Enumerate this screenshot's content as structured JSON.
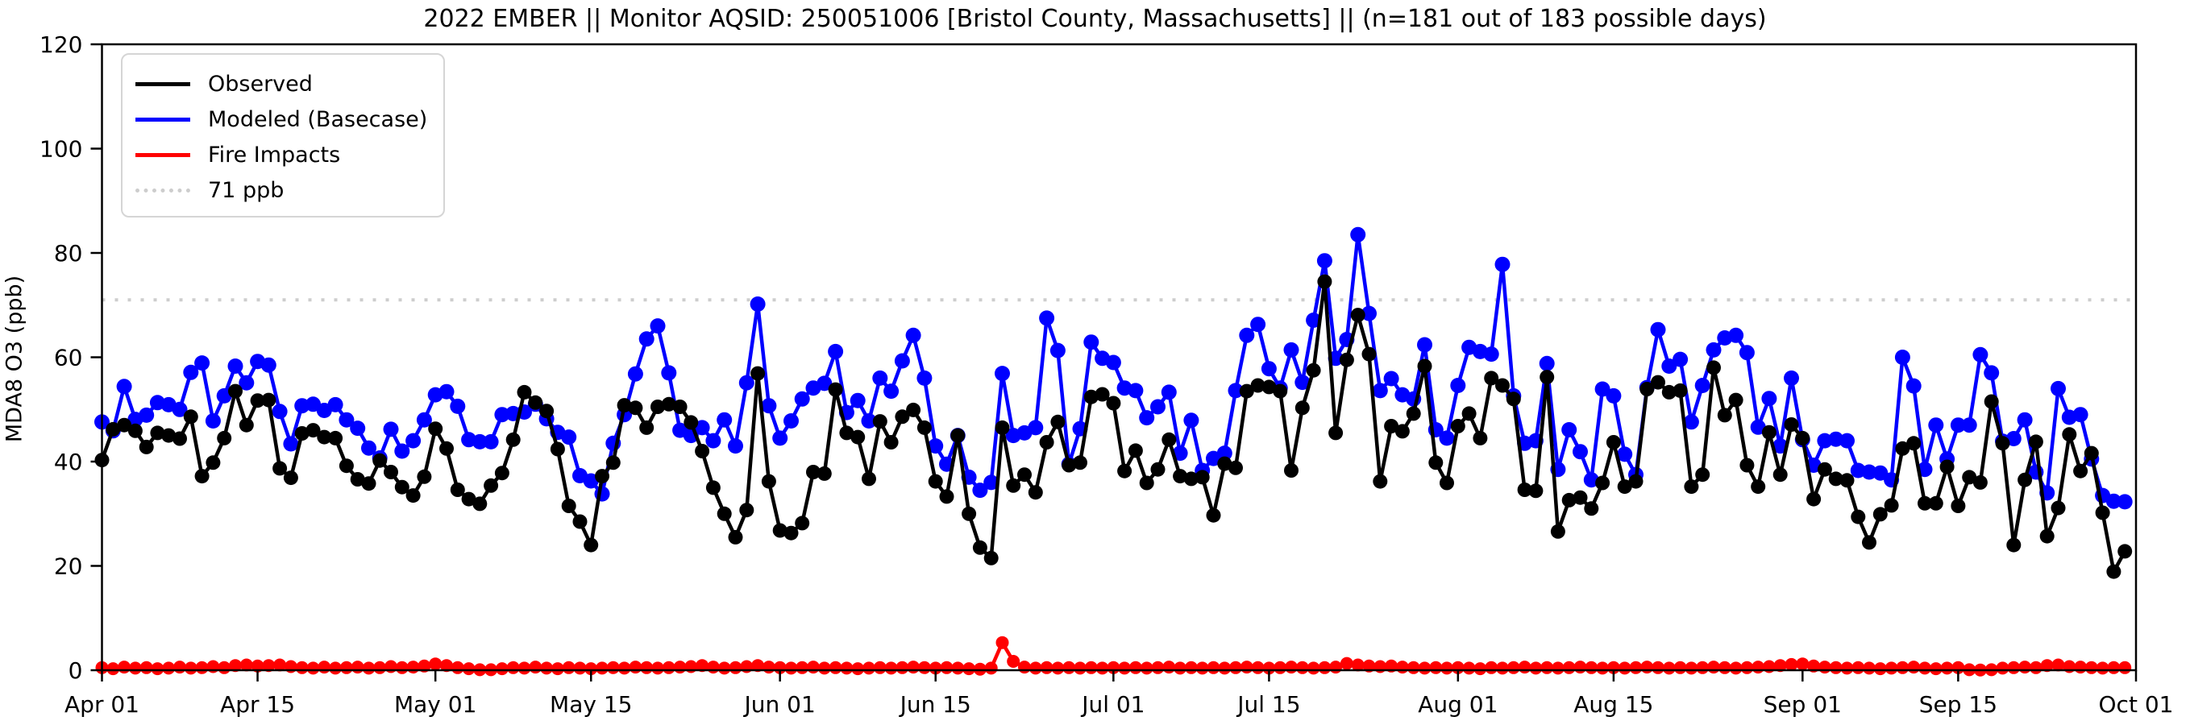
{
  "title": "2022 EMBER || Monitor AQSID: 250051006 [Bristol County, Massachusetts] || (n=181 out of 183 possible days)",
  "ylabel": "MDA8 O3 (ppb)",
  "legend": {
    "observed": "Observed",
    "modeled": "Modeled (Basecase)",
    "fire": "Fire Impacts",
    "threshold": "71 ppb"
  },
  "colors": {
    "observed": "#000000",
    "modeled": "#0000ff",
    "fire": "#ff0000",
    "threshold": "#cdcdcd",
    "axis": "#000000"
  },
  "chart_data": {
    "type": "line",
    "title": "2022 EMBER || Monitor AQSID: 250051006 [Bristol County, Massachusetts] || (n=181 out of 183 possible days)",
    "xlabel": "",
    "ylabel": "MDA8 O3 (ppb)",
    "ylim": [
      0,
      120
    ],
    "y_ticks": [
      0,
      20,
      40,
      60,
      80,
      100,
      120
    ],
    "x_ticks": [
      {
        "label": "Apr 01",
        "day": 0
      },
      {
        "label": "Apr 15",
        "day": 14
      },
      {
        "label": "May 01",
        "day": 30
      },
      {
        "label": "May 15",
        "day": 44
      },
      {
        "label": "Jun 01",
        "day": 61
      },
      {
        "label": "Jun 15",
        "day": 75
      },
      {
        "label": "Jul 01",
        "day": 91
      },
      {
        "label": "Jul 15",
        "day": 105
      },
      {
        "label": "Aug 01",
        "day": 122
      },
      {
        "label": "Aug 15",
        "day": 136
      },
      {
        "label": "Sep 01",
        "day": 153
      },
      {
        "label": "Sep 15",
        "day": 167
      },
      {
        "label": "Oct 01",
        "day": 183
      }
    ],
    "date_range": {
      "start": "Apr 01 2022",
      "end": "Sep 30 2022",
      "days": 183
    },
    "n_days_observed": 181,
    "n_days_possible": 183,
    "threshold_ppb": 71,
    "legend_position": "upper left",
    "grid": false,
    "series": [
      {
        "name": "Observed",
        "color": "#000000",
        "values": [
          40.3,
          46.2,
          47.0,
          45.9,
          42.8,
          45.5,
          45.0,
          44.4,
          48.6,
          37.2,
          39.8,
          44.5,
          53.5,
          47.0,
          51.7,
          51.8,
          38.7,
          36.9,
          45.4,
          46.0,
          44.7,
          44.5,
          39.2,
          36.6,
          35.8,
          40.2,
          38.0,
          35.1,
          33.5,
          37.1,
          46.3,
          42.5,
          34.6,
          32.8,
          31.9,
          35.4,
          37.8,
          44.2,
          53.3,
          51.3,
          49.7,
          42.4,
          31.5,
          28.5,
          24.0,
          37.2,
          39.8,
          50.8,
          50.3,
          46.5,
          50.5,
          51.0,
          50.5,
          47.5,
          42.0,
          35.0,
          30.0,
          25.5,
          30.7,
          56.9,
          36.2,
          26.8,
          26.3,
          28.2,
          38.0,
          37.7,
          53.8,
          45.5,
          44.7,
          36.7,
          47.7,
          43.7,
          48.6,
          49.9,
          46.5,
          36.2,
          33.3,
          45.0,
          30.0,
          23.5,
          21.5,
          46.5,
          35.4,
          37.5,
          34.1,
          43.7,
          47.6,
          39.3,
          39.8,
          52.4,
          52.9,
          51.2,
          38.2,
          42.1,
          35.9,
          38.5,
          44.2,
          37.2,
          36.7,
          37.0,
          29.7,
          39.6,
          38.8,
          53.5,
          54.6,
          54.3,
          53.5,
          38.3,
          50.3,
          57.5,
          74.5,
          45.5,
          59.5,
          68.1,
          60.6,
          36.2,
          46.8,
          45.8,
          49.2,
          58.3,
          39.8,
          35.9,
          46.8,
          49.2,
          44.5,
          56.0,
          54.6,
          52.0,
          34.6,
          34.4,
          56.2,
          26.6,
          32.6,
          33.1,
          31.0,
          35.9,
          43.7,
          35.2,
          36.2,
          53.9,
          55.2,
          53.3,
          53.6,
          35.2,
          37.5,
          58.0,
          48.9,
          51.8,
          39.3,
          35.2,
          45.6,
          37.5,
          47.1,
          44.5,
          32.8,
          38.5,
          36.7,
          36.4,
          29.4,
          24.5,
          29.9,
          31.6,
          42.5,
          43.5,
          32.0,
          32.0,
          39.0,
          31.5,
          37.0,
          36.0,
          51.5,
          43.5,
          24.0,
          36.5,
          43.8,
          25.7,
          31.1,
          45.2,
          38.2,
          41.6,
          30.2,
          18.9,
          22.8
        ]
      },
      {
        "name": "Modeled (Basecase)",
        "color": "#0000ff",
        "values": [
          47.6,
          45.9,
          54.4,
          48.1,
          48.9,
          51.3,
          50.9,
          50.0,
          57.1,
          58.9,
          47.8,
          52.6,
          58.3,
          55.1,
          59.2,
          58.5,
          49.6,
          43.4,
          50.7,
          51.0,
          49.8,
          50.9,
          48.0,
          46.4,
          42.6,
          40.7,
          46.2,
          42.0,
          44.0,
          48.0,
          52.8,
          53.4,
          50.6,
          44.2,
          43.8,
          43.8,
          49.0,
          49.2,
          49.5,
          51.0,
          48.2,
          45.6,
          44.7,
          37.3,
          36.3,
          33.8,
          43.5,
          49.0,
          56.8,
          63.5,
          66.0,
          57.0,
          46.0,
          45.0,
          46.5,
          44.0,
          48.0,
          43.0,
          55.1,
          70.2,
          50.7,
          44.5,
          47.8,
          52.0,
          54.1,
          55.0,
          61.1,
          49.4,
          51.7,
          47.8,
          56.0,
          53.5,
          59.3,
          64.2,
          56.0,
          43.0,
          39.5,
          45.0,
          37.0,
          34.5,
          36.0,
          56.9,
          45.0,
          45.5,
          46.5,
          67.5,
          61.3,
          39.5,
          46.3,
          62.9,
          59.8,
          59.0,
          54.1,
          53.6,
          48.4,
          50.5,
          53.3,
          41.6,
          47.9,
          38.3,
          40.6,
          41.6,
          53.6,
          64.2,
          66.3,
          57.8,
          54.1,
          61.4,
          55.2,
          67.1,
          78.5,
          59.8,
          63.4,
          83.5,
          68.4,
          53.6,
          55.9,
          52.8,
          52.0,
          62.4,
          46.1,
          44.5,
          54.6,
          61.9,
          61.1,
          60.6,
          77.8,
          52.6,
          43.5,
          44.0,
          58.8,
          38.5,
          46.1,
          41.9,
          36.5,
          53.9,
          52.6,
          41.4,
          37.5,
          54.2,
          65.3,
          58.3,
          59.6,
          47.6,
          54.6,
          61.4,
          63.7,
          64.2,
          60.9,
          46.6,
          52.1,
          43.0,
          56.0,
          44.2,
          39.3,
          44.0,
          44.3,
          44.0,
          38.3,
          38.0,
          37.8,
          36.5,
          60.0,
          54.5,
          38.5,
          47.0,
          40.5,
          47.0,
          47.0,
          60.5,
          57.0,
          43.9,
          44.4,
          48.0,
          38.0,
          34.0,
          54.0,
          48.5,
          49.0,
          40.5,
          33.5,
          32.4,
          32.3
        ]
      },
      {
        "name": "Fire Impacts",
        "color": "#ff0000",
        "values": [
          0.5,
          0.3,
          0.6,
          0.4,
          0.5,
          0.3,
          0.4,
          0.6,
          0.4,
          0.5,
          0.7,
          0.5,
          0.9,
          1.0,
          0.8,
          0.9,
          1.0,
          0.7,
          0.5,
          0.4,
          0.6,
          0.4,
          0.5,
          0.6,
          0.4,
          0.5,
          0.7,
          0.5,
          0.6,
          0.8,
          1.2,
          0.9,
          0.5,
          0.3,
          0.1,
          0.1,
          0.3,
          0.5,
          0.4,
          0.6,
          0.4,
          0.3,
          0.5,
          0.4,
          0.3,
          0.4,
          0.5,
          0.4,
          0.6,
          0.5,
          0.4,
          0.5,
          0.6,
          0.7,
          0.9,
          0.6,
          0.4,
          0.5,
          0.7,
          0.9,
          0.6,
          0.5,
          0.4,
          0.5,
          0.6,
          0.4,
          0.5,
          0.4,
          0.3,
          0.4,
          0.5,
          0.4,
          0.5,
          0.6,
          0.5,
          0.4,
          0.5,
          0.4,
          0.3,
          0.2,
          0.4,
          5.3,
          1.7,
          0.6,
          0.4,
          0.5,
          0.4,
          0.5,
          0.4,
          0.5,
          0.4,
          0.5,
          0.4,
          0.5,
          0.4,
          0.5,
          0.6,
          0.4,
          0.5,
          0.4,
          0.5,
          0.4,
          0.5,
          0.6,
          0.5,
          0.4,
          0.5,
          0.6,
          0.5,
          0.4,
          0.5,
          0.6,
          1.3,
          1.0,
          0.8,
          0.7,
          0.8,
          0.6,
          0.5,
          0.4,
          0.5,
          0.4,
          0.5,
          0.4,
          0.3,
          0.5,
          0.4,
          0.5,
          0.6,
          0.4,
          0.5,
          0.4,
          0.5,
          0.6,
          0.5,
          0.4,
          0.5,
          0.4,
          0.5,
          0.6,
          0.5,
          0.4,
          0.5,
          0.4,
          0.5,
          0.6,
          0.5,
          0.4,
          0.5,
          0.6,
          0.7,
          0.9,
          1.1,
          1.2,
          0.8,
          0.6,
          0.5,
          0.4,
          0.5,
          0.4,
          0.3,
          0.4,
          0.5,
          0.6,
          0.4,
          0.3,
          0.4,
          0.5,
          0.1,
          0.05,
          0.1,
          0.4,
          0.5,
          0.6,
          0.5,
          0.9,
          1.0,
          0.7,
          0.6,
          0.5,
          0.4,
          0.5,
          0.5
        ]
      }
    ]
  }
}
